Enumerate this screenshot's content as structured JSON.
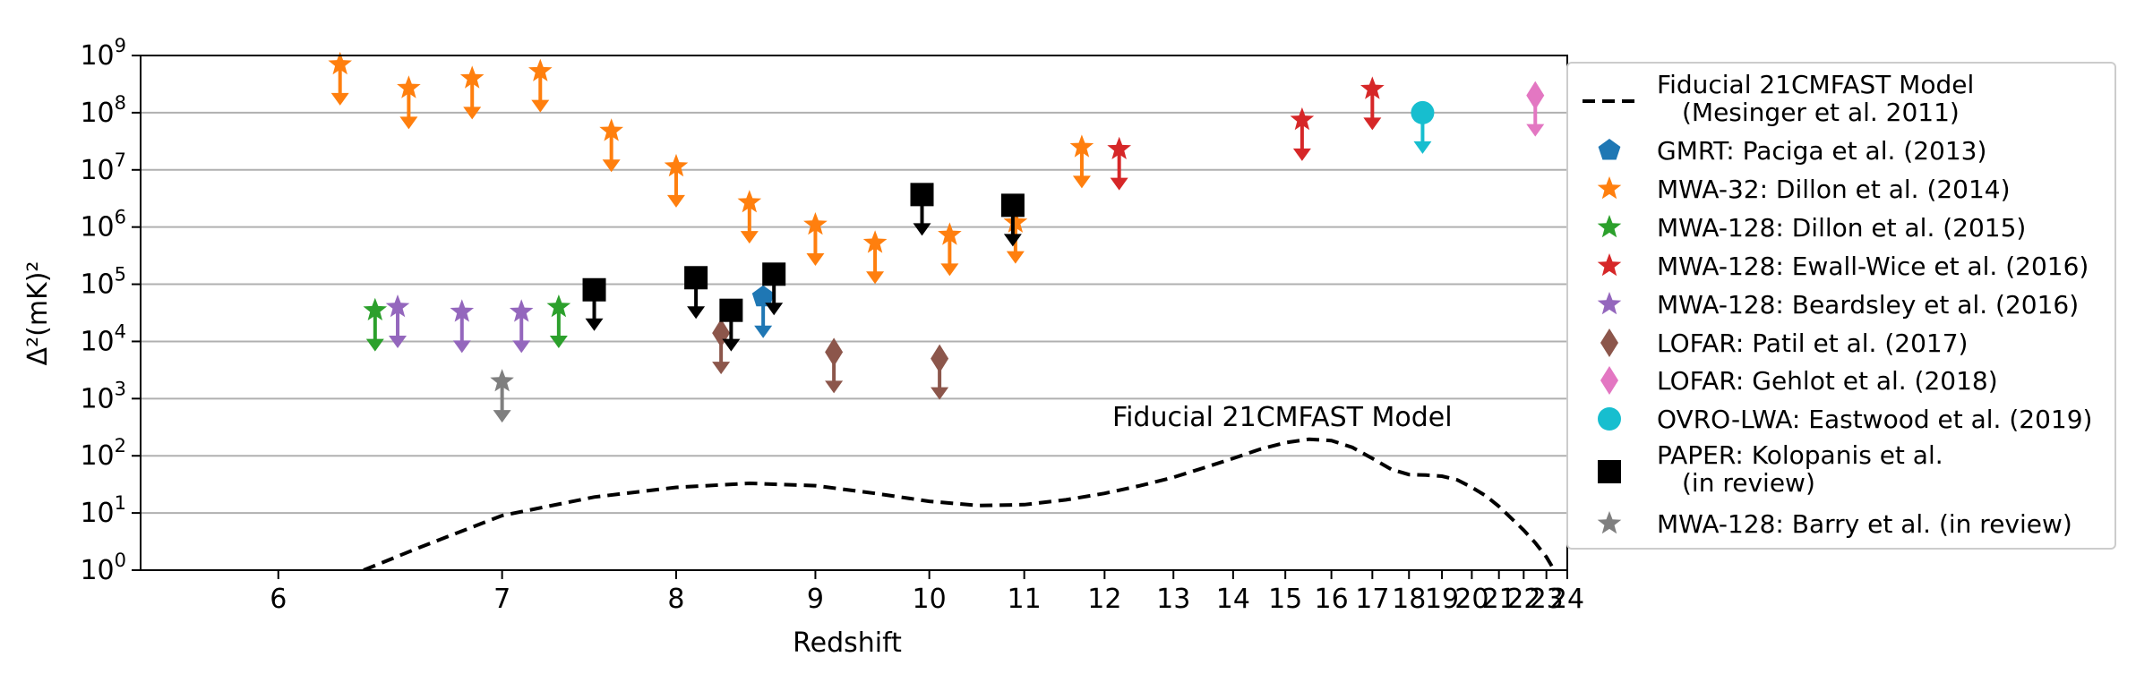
{
  "chart_data": {
    "type": "scatter",
    "title": "",
    "xlabel": "Redshift",
    "ylabel": "Δ²(mK)²",
    "x_scale": "reciprocal (1+z)",
    "y_scale": "log",
    "xlim": [
      5.5,
      24
    ],
    "ylim": [
      1,
      1000000000
    ],
    "xticks": [
      "6",
      "7",
      "8",
      "9",
      "10",
      "11",
      "12",
      "13",
      "14",
      "15",
      "16",
      "17",
      "18",
      "19",
      "20",
      "21",
      "22",
      "23",
      "24"
    ],
    "yticks": [
      {
        "base": "10",
        "exp": "0"
      },
      {
        "base": "10",
        "exp": "1"
      },
      {
        "base": "10",
        "exp": "2"
      },
      {
        "base": "10",
        "exp": "3"
      },
      {
        "base": "10",
        "exp": "4"
      },
      {
        "base": "10",
        "exp": "5"
      },
      {
        "base": "10",
        "exp": "6"
      },
      {
        "base": "10",
        "exp": "7"
      },
      {
        "base": "10",
        "exp": "8"
      },
      {
        "base": "10",
        "exp": "9"
      }
    ],
    "grid": "horizontal",
    "legend_position": "right",
    "annotation": "Fiducial 21CMFAST Model",
    "model": {
      "legend": [
        "Fiducial 21CMFAST Model",
        "(Mesinger et al. 2011)"
      ],
      "color": "#000000",
      "points": [
        [
          6.35,
          1
        ],
        [
          6.6,
          2.5
        ],
        [
          7.0,
          9
        ],
        [
          7.5,
          19
        ],
        [
          8.0,
          28
        ],
        [
          8.5,
          33
        ],
        [
          9.0,
          30
        ],
        [
          9.5,
          22
        ],
        [
          10.0,
          16
        ],
        [
          10.5,
          13.5
        ],
        [
          11.0,
          14
        ],
        [
          11.5,
          17
        ],
        [
          12.0,
          22
        ],
        [
          12.5,
          30
        ],
        [
          13.0,
          42
        ],
        [
          13.5,
          62
        ],
        [
          14.0,
          90
        ],
        [
          14.5,
          130
        ],
        [
          15.0,
          170
        ],
        [
          15.5,
          195
        ],
        [
          16.0,
          185
        ],
        [
          16.5,
          140
        ],
        [
          17.0,
          90
        ],
        [
          17.5,
          58
        ],
        [
          18.0,
          47
        ],
        [
          18.5,
          46
        ],
        [
          19.0,
          44
        ],
        [
          19.5,
          38
        ],
        [
          20.0,
          28
        ],
        [
          20.5,
          20
        ],
        [
          21.0,
          13
        ],
        [
          21.5,
          8
        ],
        [
          22.0,
          5
        ],
        [
          22.5,
          3
        ],
        [
          23.0,
          1.7
        ],
        [
          23.3,
          1.1
        ],
        [
          23.5,
          0.8
        ]
      ]
    },
    "series": [
      {
        "name": "GMRT: Paciga et al. (2013)",
        "marker": "pentagon",
        "color": "#1f77b4",
        "points": [
          [
            8.6,
            60000
          ]
        ]
      },
      {
        "name": "MWA-32: Dillon et al. (2014)",
        "marker": "star",
        "color": "#ff7f0e",
        "points": [
          [
            6.25,
            700000000
          ],
          [
            6.55,
            270000000
          ],
          [
            6.85,
            400000000
          ],
          [
            7.2,
            530000000
          ],
          [
            7.6,
            48000000
          ],
          [
            8.0,
            11500000
          ],
          [
            8.5,
            2700000
          ],
          [
            9.0,
            1100000
          ],
          [
            9.5,
            530000
          ],
          [
            10.2,
            730000
          ],
          [
            10.9,
            1200000
          ],
          [
            11.7,
            25000000
          ]
        ]
      },
      {
        "name": "MWA-128: Dillon et al. (2015)",
        "marker": "star",
        "color": "#2ca02c",
        "points": [
          [
            6.4,
            35000
          ],
          [
            7.3,
            40000
          ]
        ]
      },
      {
        "name": "MWA-128: Ewall-Wice et al. (2016)",
        "marker": "star",
        "color": "#d62728",
        "points": [
          [
            12.2,
            23000000
          ],
          [
            15.35,
            75000000
          ],
          [
            17.0,
            260000000
          ]
        ]
      },
      {
        "name": "MWA-128: Beardsley et al. (2016)",
        "marker": "star",
        "color": "#9467bd",
        "points": [
          [
            6.5,
            40000
          ],
          [
            6.8,
            33000
          ],
          [
            7.1,
            33000
          ]
        ]
      },
      {
        "name": "LOFAR: Patil et al. (2017)",
        "marker": "thin_diamond",
        "color": "#8c564b",
        "points": [
          [
            8.3,
            14000
          ],
          [
            9.15,
            6500
          ],
          [
            10.1,
            5000
          ]
        ]
      },
      {
        "name": "LOFAR: Gehlot et al. (2018)",
        "marker": "thin_diamond",
        "color": "#e377c2",
        "points": [
          [
            22.5,
            200000000
          ]
        ]
      },
      {
        "name": "OVRO-LWA: Eastwood et al. (2019)",
        "marker": "circle",
        "color": "#17becf",
        "points": [
          [
            18.4,
            100000000
          ]
        ]
      },
      {
        "name": "PAPER: Kolopanis et al.",
        "name_line2": "(in review)",
        "marker": "square",
        "color": "#000000",
        "points": [
          [
            7.5,
            80000
          ],
          [
            8.13,
            130000
          ],
          [
            8.37,
            35000
          ],
          [
            8.68,
            150000
          ],
          [
            9.93,
            3700000
          ],
          [
            10.87,
            2400000
          ]
        ]
      },
      {
        "name": "MWA-128: Barry et al. (in review)",
        "marker": "star",
        "color": "#7f7f7f",
        "points": [
          [
            7.0,
            2000
          ]
        ]
      }
    ]
  }
}
